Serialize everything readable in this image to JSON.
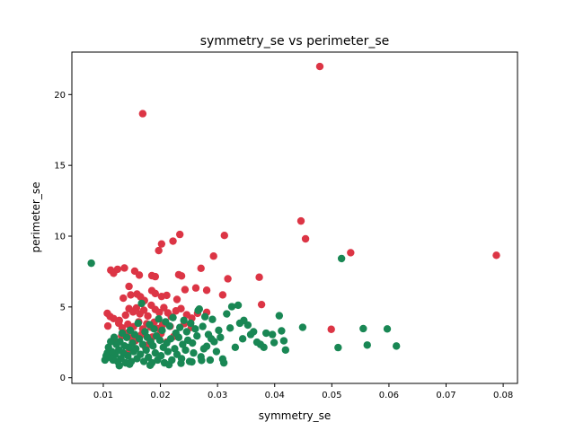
{
  "chart_data": {
    "type": "scatter",
    "title": "symmetry_se vs perimeter_se",
    "xlabel": "symmetry_se",
    "ylabel": "perimeter_se",
    "xlim": [
      0.0045,
      0.0825
    ],
    "ylim": [
      -0.4,
      23.0
    ],
    "xticks": [
      0.01,
      0.02,
      0.03,
      0.04,
      0.05,
      0.06,
      0.07,
      0.08
    ],
    "xtick_labels": [
      "0.01",
      "0.02",
      "0.03",
      "0.04",
      "0.05",
      "0.06",
      "0.07",
      "0.08"
    ],
    "yticks": [
      0,
      5,
      10,
      15,
      20
    ],
    "ytick_labels": [
      "0",
      "5",
      "10",
      "15",
      "20"
    ],
    "grid": false,
    "legend": "none",
    "colors": {
      "malignant": "#dc3545",
      "benign": "#198754"
    },
    "series": [
      {
        "color": "#dc3545",
        "points": [
          [
            0.0479,
            21.98
          ],
          [
            0.0169,
            18.65
          ],
          [
            0.0446,
            11.07
          ],
          [
            0.0454,
            9.81
          ],
          [
            0.0234,
            10.12
          ],
          [
            0.0312,
            10.05
          ],
          [
            0.0202,
            9.45
          ],
          [
            0.0222,
            9.65
          ],
          [
            0.0197,
            8.98
          ],
          [
            0.0293,
            8.59
          ],
          [
            0.0533,
            8.83
          ],
          [
            0.0788,
            8.65
          ],
          [
            0.0113,
            7.6
          ],
          [
            0.0118,
            7.38
          ],
          [
            0.0125,
            7.66
          ],
          [
            0.0137,
            7.75
          ],
          [
            0.0155,
            7.53
          ],
          [
            0.0163,
            7.25
          ],
          [
            0.0185,
            7.21
          ],
          [
            0.0191,
            7.14
          ],
          [
            0.0232,
            7.28
          ],
          [
            0.0237,
            7.19
          ],
          [
            0.0271,
            7.73
          ],
          [
            0.0318,
            6.99
          ],
          [
            0.0373,
            7.1
          ],
          [
            0.0145,
            6.45
          ],
          [
            0.0148,
            5.85
          ],
          [
            0.0135,
            5.62
          ],
          [
            0.0159,
            5.91
          ],
          [
            0.0165,
            5.72
          ],
          [
            0.0172,
            5.45
          ],
          [
            0.0185,
            6.15
          ],
          [
            0.0191,
            5.95
          ],
          [
            0.0202,
            5.74
          ],
          [
            0.0211,
            5.82
          ],
          [
            0.0229,
            5.53
          ],
          [
            0.0243,
            6.22
          ],
          [
            0.0262,
            6.34
          ],
          [
            0.0281,
            6.18
          ],
          [
            0.0309,
            5.85
          ],
          [
            0.0377,
            5.17
          ],
          [
            0.0499,
            3.42
          ],
          [
            0.0107,
            4.55
          ],
          [
            0.0112,
            4.32
          ],
          [
            0.0118,
            4.18
          ],
          [
            0.0128,
            4.05
          ],
          [
            0.0139,
            4.42
          ],
          [
            0.0145,
            4.88
          ],
          [
            0.0152,
            4.65
          ],
          [
            0.0158,
            4.93
          ],
          [
            0.0164,
            4.51
          ],
          [
            0.0171,
            4.77
          ],
          [
            0.0178,
            4.36
          ],
          [
            0.0184,
            5.12
          ],
          [
            0.0191,
            4.82
          ],
          [
            0.0198,
            4.61
          ],
          [
            0.0206,
            4.95
          ],
          [
            0.0213,
            4.58
          ],
          [
            0.0219,
            4.31
          ],
          [
            0.0227,
            4.72
          ],
          [
            0.0236,
            4.88
          ],
          [
            0.0246,
            4.45
          ],
          [
            0.0255,
            4.21
          ],
          [
            0.0265,
            4.55
          ],
          [
            0.0281,
            4.62
          ],
          [
            0.0108,
            3.65
          ],
          [
            0.0127,
            3.85
          ],
          [
            0.0133,
            3.52
          ],
          [
            0.0143,
            3.78
          ],
          [
            0.0153,
            3.61
          ],
          [
            0.0162,
            3.95
          ],
          [
            0.0169,
            3.44
          ],
          [
            0.0176,
            3.81
          ],
          [
            0.0183,
            3.57
          ],
          [
            0.0189,
            3.92
          ],
          [
            0.0196,
            3.48
          ],
          [
            0.0204,
            3.75
          ],
          [
            0.0217,
            3.63
          ],
          [
            0.0242,
            3.82
          ],
          [
            0.0254,
            3.55
          ],
          [
            0.0132,
            2.95
          ],
          [
            0.0141,
            3.15
          ],
          [
            0.0149,
            2.82
          ],
          [
            0.0167,
            3.05
          ],
          [
            0.0186,
            2.88
          ],
          [
            0.0201,
            3.12
          ],
          [
            0.0223,
            2.91
          ],
          [
            0.0122,
            2.45
          ],
          [
            0.0156,
            2.61
          ],
          [
            0.0179,
            2.34
          ],
          [
            0.0211,
            2.52
          ],
          [
            0.0146,
            1.98
          ],
          [
            0.0174,
            2.15
          ]
        ]
      },
      {
        "color": "#198754",
        "points": [
          [
            0.0079,
            8.09
          ],
          [
            0.0517,
            8.42
          ],
          [
            0.0449,
            3.56
          ],
          [
            0.0511,
            2.13
          ],
          [
            0.0555,
            3.47
          ],
          [
            0.0562,
            2.31
          ],
          [
            0.0597,
            3.45
          ],
          [
            0.0613,
            2.24
          ],
          [
            0.0408,
            4.38
          ],
          [
            0.0416,
            2.61
          ],
          [
            0.0419,
            1.96
          ],
          [
            0.0412,
            3.31
          ],
          [
            0.0399,
            2.48
          ],
          [
            0.0396,
            3.05
          ],
          [
            0.0385,
            3.15
          ],
          [
            0.0375,
            2.35
          ],
          [
            0.0369,
            2.51
          ],
          [
            0.0363,
            3.25
          ],
          [
            0.0353,
            3.72
          ],
          [
            0.0346,
            4.05
          ],
          [
            0.0339,
            3.85
          ],
          [
            0.0336,
            5.12
          ],
          [
            0.0325,
            5.02
          ],
          [
            0.0322,
            3.51
          ],
          [
            0.0316,
            4.51
          ],
          [
            0.0311,
            1.05
          ],
          [
            0.0305,
            2.85
          ],
          [
            0.0302,
            3.35
          ],
          [
            0.0298,
            1.85
          ],
          [
            0.0294,
            2.55
          ],
          [
            0.0291,
            4.12
          ],
          [
            0.0287,
            1.25
          ],
          [
            0.0284,
            3.05
          ],
          [
            0.0281,
            2.22
          ],
          [
            0.0278,
            4.31
          ],
          [
            0.0274,
            3.62
          ],
          [
            0.0271,
            1.48
          ],
          [
            0.0268,
            4.85
          ],
          [
            0.0266,
            4.75
          ],
          [
            0.0264,
            2.95
          ],
          [
            0.0261,
            3.45
          ],
          [
            0.0258,
            1.75
          ],
          [
            0.0256,
            2.45
          ],
          [
            0.0253,
            3.85
          ],
          [
            0.0251,
            1.15
          ],
          [
            0.0248,
            2.65
          ],
          [
            0.0246,
            3.25
          ],
          [
            0.0244,
            1.95
          ],
          [
            0.0241,
            4.05
          ],
          [
            0.0239,
            2.35
          ],
          [
            0.0237,
            1.35
          ],
          [
            0.0234,
            3.55
          ],
          [
            0.0232,
            2.85
          ],
          [
            0.0229,
            1.65
          ],
          [
            0.0227,
            3.15
          ],
          [
            0.0225,
            2.05
          ],
          [
            0.0222,
            4.25
          ],
          [
            0.022,
            1.25
          ],
          [
            0.0218,
            2.75
          ],
          [
            0.0216,
            3.65
          ],
          [
            0.0213,
            1.85
          ],
          [
            0.0211,
            2.45
          ],
          [
            0.0209,
            3.95
          ],
          [
            0.0207,
            1.05
          ],
          [
            0.0205,
            2.15
          ],
          [
            0.0203,
            3.35
          ],
          [
            0.0201,
            1.55
          ],
          [
            0.0199,
            2.65
          ],
          [
            0.0197,
            4.15
          ],
          [
            0.0195,
            1.25
          ],
          [
            0.0193,
            2.95
          ],
          [
            0.0191,
            1.75
          ],
          [
            0.0189,
            3.45
          ],
          [
            0.0187,
            2.25
          ],
          [
            0.0185,
            1.05
          ],
          [
            0.0183,
            2.55
          ],
          [
            0.0181,
            3.75
          ],
          [
            0.0179,
            1.45
          ],
          [
            0.0177,
            2.85
          ],
          [
            0.0175,
            1.95
          ],
          [
            0.0173,
            3.25
          ],
          [
            0.0171,
            1.15
          ],
          [
            0.0169,
            2.35
          ],
          [
            0.0167,
            5.25
          ],
          [
            0.0165,
            1.65
          ],
          [
            0.0163,
            2.75
          ],
          [
            0.0161,
            3.85
          ],
          [
            0.0159,
            1.35
          ],
          [
            0.0157,
            2.05
          ],
          [
            0.0155,
            3.05
          ],
          [
            0.0153,
            1.85
          ],
          [
            0.0151,
            2.45
          ],
          [
            0.0149,
            1.15
          ],
          [
            0.0147,
            3.35
          ],
          [
            0.0145,
            2.15
          ],
          [
            0.0143,
            1.55
          ],
          [
            0.0141,
            2.85
          ],
          [
            0.0139,
            1.05
          ],
          [
            0.0137,
            2.25
          ],
          [
            0.0135,
            1.75
          ],
          [
            0.0133,
            3.15
          ],
          [
            0.0131,
            1.35
          ],
          [
            0.0129,
            2.55
          ],
          [
            0.0127,
            1.95
          ],
          [
            0.0125,
            1.15
          ],
          [
            0.0123,
            2.35
          ],
          [
            0.0121,
            1.65
          ],
          [
            0.0119,
            2.85
          ],
          [
            0.0117,
            1.25
          ],
          [
            0.0115,
            1.85
          ],
          [
            0.0113,
            2.55
          ],
          [
            0.0111,
            1.45
          ],
          [
            0.0109,
            2.15
          ],
          [
            0.0107,
            1.75
          ],
          [
            0.0105,
            1.55
          ],
          [
            0.0103,
            1.25
          ],
          [
            0.0128,
            0.85
          ],
          [
            0.0146,
            0.95
          ],
          [
            0.0182,
            0.88
          ],
          [
            0.0215,
            0.92
          ],
          [
            0.0236,
            1.02
          ],
          [
            0.0255,
            1.12
          ],
          [
            0.0272,
            1.22
          ],
          [
            0.0309,
            1.32
          ],
          [
            0.0331,
            2.15
          ],
          [
            0.0344,
            2.75
          ],
          [
            0.0358,
            3.05
          ],
          [
            0.0381,
            2.15
          ],
          [
            0.0276,
            2.05
          ],
          [
            0.0289,
            2.75
          ]
        ]
      }
    ]
  }
}
